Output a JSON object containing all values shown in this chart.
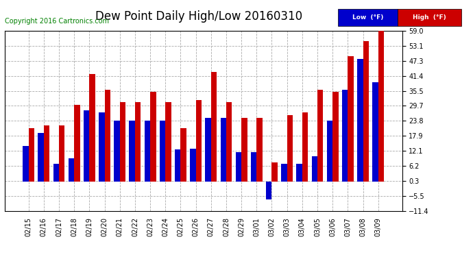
{
  "title": "Dew Point Daily High/Low 20160310",
  "copyright": "Copyright 2016 Cartronics.com",
  "legend_low": "Low  (°F)",
  "legend_high": "High  (°F)",
  "categories": [
    "02/15",
    "02/16",
    "02/17",
    "02/18",
    "02/19",
    "02/20",
    "02/21",
    "02/22",
    "02/23",
    "02/24",
    "02/25",
    "02/26",
    "02/27",
    "02/28",
    "02/29",
    "03/01",
    "03/02",
    "03/03",
    "03/04",
    "03/05",
    "03/06",
    "03/07",
    "03/08",
    "03/09"
  ],
  "low_values": [
    14.0,
    19.0,
    7.0,
    9.0,
    28.0,
    27.0,
    24.0,
    24.0,
    24.0,
    24.0,
    12.5,
    13.0,
    25.0,
    25.0,
    11.5,
    11.5,
    -7.0,
    7.0,
    7.0,
    10.0,
    24.0,
    36.0,
    48.0,
    39.0
  ],
  "high_values": [
    21.0,
    22.0,
    22.0,
    30.0,
    42.0,
    36.0,
    31.0,
    31.0,
    35.0,
    31.0,
    21.0,
    32.0,
    43.0,
    31.0,
    25.0,
    25.0,
    7.5,
    26.0,
    27.0,
    36.0,
    35.0,
    49.0,
    55.0,
    59.0
  ],
  "ylim": [
    -11.4,
    59.0
  ],
  "yticks": [
    -11.4,
    -5.5,
    0.3,
    6.2,
    12.1,
    17.9,
    23.8,
    29.7,
    35.5,
    41.4,
    47.3,
    53.1,
    59.0
  ],
  "bar_width": 0.38,
  "low_color": "#0000cc",
  "high_color": "#cc0000",
  "bg_color": "#ffffff",
  "grid_color": "#aaaaaa",
  "title_fontsize": 12,
  "tick_fontsize": 7,
  "copyright_fontsize": 7
}
